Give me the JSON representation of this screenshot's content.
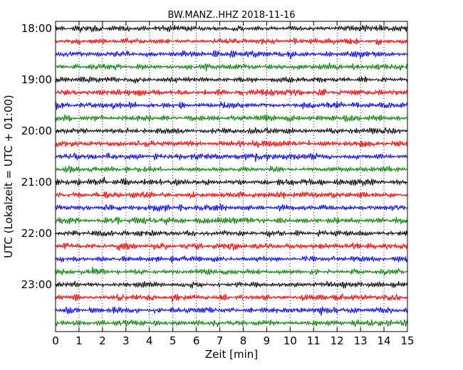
{
  "chart_data": {
    "type": "line",
    "title": "BW.MANZ..HHZ 2018-11-16",
    "xlabel": "Zeit  [min]",
    "ylabel": "UTC (Lokalzeit = UTC + 01:00)",
    "xlim": [
      0,
      15
    ],
    "x_ticks": [
      "0",
      "1",
      "2",
      "3",
      "4",
      "5",
      "6",
      "7",
      "8",
      "9",
      "10",
      "11",
      "12",
      "13",
      "14",
      "15"
    ],
    "y_tick_labels": [
      "18:00",
      "19:00",
      "20:00",
      "21:00",
      "22:00",
      "23:00"
    ],
    "grid": "vertical dotted at each minute",
    "trace_interval_min": 15,
    "trace_colors": [
      "#000000",
      "#ff0000",
      "#0000ff",
      "#007f00"
    ],
    "series": [
      {
        "start": "18:00",
        "color": "#000000"
      },
      {
        "start": "18:15",
        "color": "#ff0000"
      },
      {
        "start": "18:30",
        "color": "#0000ff"
      },
      {
        "start": "18:45",
        "color": "#007f00"
      },
      {
        "start": "19:00",
        "color": "#000000"
      },
      {
        "start": "19:15",
        "color": "#ff0000"
      },
      {
        "start": "19:30",
        "color": "#0000ff"
      },
      {
        "start": "19:45",
        "color": "#007f00"
      },
      {
        "start": "20:00",
        "color": "#000000"
      },
      {
        "start": "20:15",
        "color": "#ff0000"
      },
      {
        "start": "20:30",
        "color": "#0000ff"
      },
      {
        "start": "20:45",
        "color": "#007f00"
      },
      {
        "start": "21:00",
        "color": "#000000"
      },
      {
        "start": "21:15",
        "color": "#ff0000"
      },
      {
        "start": "21:30",
        "color": "#0000ff"
      },
      {
        "start": "21:45",
        "color": "#007f00"
      },
      {
        "start": "22:00",
        "color": "#000000"
      },
      {
        "start": "22:15",
        "color": "#ff0000"
      },
      {
        "start": "22:30",
        "color": "#0000ff"
      },
      {
        "start": "22:45",
        "color": "#007f00"
      },
      {
        "start": "23:00",
        "color": "#000000"
      },
      {
        "start": "23:15",
        "color": "#ff0000"
      },
      {
        "start": "23:30",
        "color": "#0000ff"
      },
      {
        "start": "23:45",
        "color": "#007f00"
      }
    ]
  }
}
